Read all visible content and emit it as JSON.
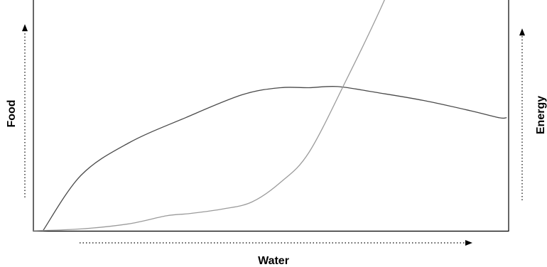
{
  "chart_data": {
    "type": "line",
    "title": "",
    "xlabel": "Water",
    "ylabel": "Food",
    "ylabel_right": "Energy",
    "xlim": [
      0,
      100
    ],
    "ylim": [
      0,
      100
    ],
    "grid": false,
    "legend": "none",
    "series": [
      {
        "color": "#4a4a4a",
        "axis": "left",
        "x": [
          2,
          10,
          20,
          32,
          44,
          52,
          58,
          64,
          72,
          82,
          92,
          98,
          99.5
        ],
        "y": [
          0,
          24,
          38,
          49,
          59,
          62,
          62,
          62.5,
          60,
          56.5,
          52,
          49,
          49
        ]
      },
      {
        "color": "#9b9b9b",
        "axis": "left",
        "x": [
          0,
          10,
          20,
          28,
          33,
          40,
          46,
          52,
          58,
          66,
          73,
          78
        ],
        "y": [
          0,
          0.8,
          3,
          6.5,
          7.5,
          9.5,
          12.5,
          21,
          34,
          66,
          96,
          120
        ]
      }
    ]
  }
}
